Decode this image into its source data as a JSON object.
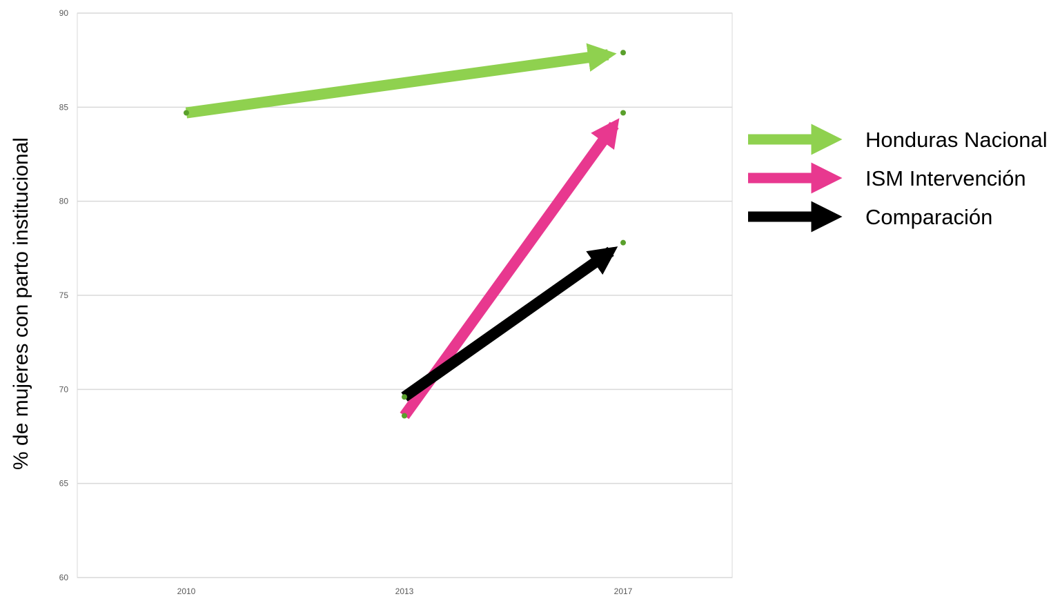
{
  "chart_data": {
    "type": "line",
    "ylabel": "% de mujeres con parto institucional",
    "x": [
      "2010",
      "2013",
      "2017"
    ],
    "ylim": [
      60,
      90
    ],
    "yticks": [
      60,
      65,
      70,
      75,
      80,
      85,
      90
    ],
    "grid": true,
    "legend_position": "right",
    "series": [
      {
        "name": "Honduras Nacional",
        "color": "#8fd14f",
        "values": [
          84.7,
          null,
          87.9
        ]
      },
      {
        "name": "ISM Intervención",
        "color": "#e8388f",
        "values": [
          null,
          68.6,
          84.7
        ]
      },
      {
        "name": "Comparación",
        "color": "#000000",
        "values": [
          null,
          69.6,
          77.8
        ]
      }
    ]
  }
}
